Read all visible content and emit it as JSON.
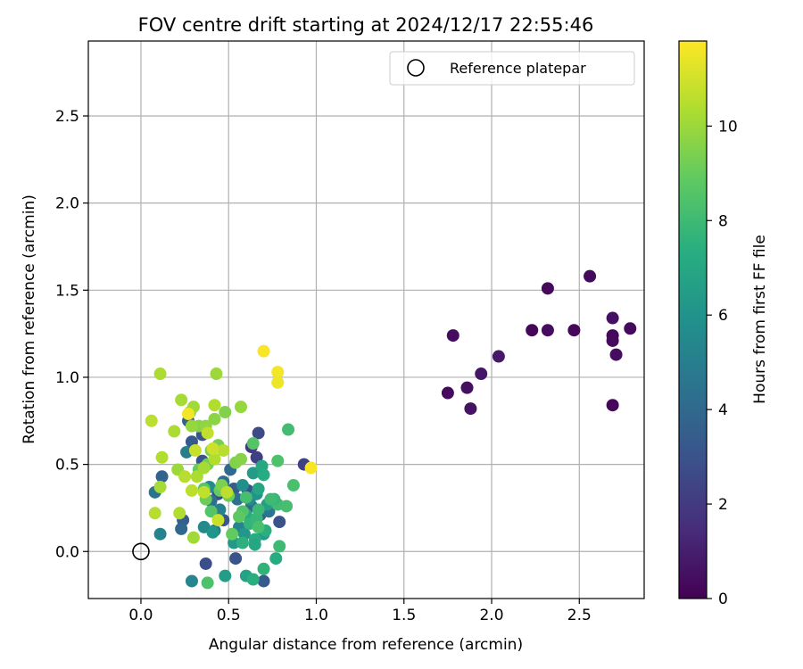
{
  "chart_data": {
    "type": "scatter",
    "title": "FOV centre drift starting at 2024/12/17 22:55:46",
    "xlabel": "Angular distance from reference (arcmin)",
    "ylabel": "Rotation from reference (arcmin)",
    "xlim": [
      -0.3,
      2.87
    ],
    "ylim": [
      -0.27,
      2.93
    ],
    "xticks": [
      0.0,
      0.5,
      1.0,
      1.5,
      2.0,
      2.5
    ],
    "xtick_labels": [
      "0.0",
      "0.5",
      "1.0",
      "1.5",
      "2.0",
      "2.5"
    ],
    "yticks": [
      0.0,
      0.5,
      1.0,
      1.5,
      2.0,
      2.5
    ],
    "ytick_labels": [
      "0.0",
      "0.5",
      "1.0",
      "1.5",
      "2.0",
      "2.5"
    ],
    "grid": true,
    "colormap": "viridis",
    "colorbar": {
      "label": "Hours from first FF file",
      "range": [
        0,
        11.8
      ],
      "ticks": [
        0,
        2,
        4,
        6,
        8,
        10
      ],
      "tick_labels": [
        "0",
        "2",
        "4",
        "6",
        "8",
        "10"
      ]
    },
    "legend": {
      "position": "top-right",
      "entries": [
        "Reference platepar"
      ]
    },
    "reference_point": {
      "x": 0.0,
      "y": 0.0
    },
    "points": [
      {
        "x": 1.75,
        "y": 0.91,
        "c": 0.3
      },
      {
        "x": 1.78,
        "y": 1.24,
        "c": 0.4
      },
      {
        "x": 1.86,
        "y": 0.94,
        "c": 0.5
      },
      {
        "x": 1.88,
        "y": 0.82,
        "c": 0.6
      },
      {
        "x": 1.94,
        "y": 1.02,
        "c": 0.7
      },
      {
        "x": 2.04,
        "y": 1.12,
        "c": 0.8
      },
      {
        "x": 2.23,
        "y": 1.27,
        "c": 0.2
      },
      {
        "x": 2.32,
        "y": 1.51,
        "c": 0.3
      },
      {
        "x": 2.32,
        "y": 1.27,
        "c": 0.4
      },
      {
        "x": 2.47,
        "y": 1.27,
        "c": 0.2
      },
      {
        "x": 2.56,
        "y": 1.58,
        "c": 0.3
      },
      {
        "x": 2.69,
        "y": 1.34,
        "c": 0.5
      },
      {
        "x": 2.69,
        "y": 1.24,
        "c": 0.2
      },
      {
        "x": 2.69,
        "y": 1.21,
        "c": 0.3
      },
      {
        "x": 2.71,
        "y": 1.13,
        "c": 0.4
      },
      {
        "x": 2.69,
        "y": 0.84,
        "c": 0.2
      },
      {
        "x": 2.79,
        "y": 1.28,
        "c": 0.3
      },
      {
        "x": 0.63,
        "y": 0.6,
        "c": 2.0
      },
      {
        "x": 0.66,
        "y": 0.54,
        "c": 2.2
      },
      {
        "x": 0.67,
        "y": 0.68,
        "c": 2.6
      },
      {
        "x": 0.93,
        "y": 0.5,
        "c": 2.3
      },
      {
        "x": 0.37,
        "y": -0.07,
        "c": 2.8
      },
      {
        "x": 0.35,
        "y": 0.52,
        "c": 3.0
      },
      {
        "x": 0.29,
        "y": 0.63,
        "c": 3.3
      },
      {
        "x": 0.27,
        "y": 0.75,
        "c": 3.6
      },
      {
        "x": 0.35,
        "y": 0.67,
        "c": 3.1
      },
      {
        "x": 0.79,
        "y": 0.17,
        "c": 3.0
      },
      {
        "x": 0.44,
        "y": 0.33,
        "c": 2.7
      },
      {
        "x": 0.53,
        "y": 0.36,
        "c": 3.4
      },
      {
        "x": 0.61,
        "y": 0.35,
        "c": 2.9
      },
      {
        "x": 0.12,
        "y": 0.43,
        "c": 3.8
      },
      {
        "x": 0.24,
        "y": 0.18,
        "c": 3.5
      },
      {
        "x": 0.47,
        "y": 0.18,
        "c": 3.2
      },
      {
        "x": 0.54,
        "y": -0.04,
        "c": 3.0
      },
      {
        "x": 0.7,
        "y": -0.17,
        "c": 3.3
      },
      {
        "x": 0.23,
        "y": 0.13,
        "c": 3.9
      },
      {
        "x": 0.08,
        "y": 0.34,
        "c": 4.5
      },
      {
        "x": 0.47,
        "y": 0.4,
        "c": 4.2
      },
      {
        "x": 0.55,
        "y": 0.3,
        "c": 4.4
      },
      {
        "x": 0.63,
        "y": 0.26,
        "c": 4.1
      },
      {
        "x": 0.68,
        "y": 0.21,
        "c": 3.8
      },
      {
        "x": 0.73,
        "y": 0.23,
        "c": 4.6
      },
      {
        "x": 0.51,
        "y": 0.47,
        "c": 4.0
      },
      {
        "x": 0.4,
        "y": 0.29,
        "c": 4.3
      },
      {
        "x": 0.42,
        "y": 0.12,
        "c": 4.8
      },
      {
        "x": 0.11,
        "y": 0.1,
        "c": 5.2
      },
      {
        "x": 0.29,
        "y": -0.17,
        "c": 5.4
      },
      {
        "x": 0.26,
        "y": 0.57,
        "c": 5.0
      },
      {
        "x": 0.36,
        "y": 0.14,
        "c": 5.5
      },
      {
        "x": 0.39,
        "y": 0.37,
        "c": 5.6
      },
      {
        "x": 0.45,
        "y": 0.24,
        "c": 5.1
      },
      {
        "x": 0.56,
        "y": 0.14,
        "c": 5.3
      },
      {
        "x": 0.58,
        "y": 0.38,
        "c": 5.8
      },
      {
        "x": 0.62,
        "y": 0.3,
        "c": 5.7
      },
      {
        "x": 0.66,
        "y": 0.33,
        "c": 6.0
      },
      {
        "x": 0.41,
        "y": 0.11,
        "c": 6.1
      },
      {
        "x": 0.53,
        "y": 0.05,
        "c": 6.3
      },
      {
        "x": 0.59,
        "y": 0.1,
        "c": 6.2
      },
      {
        "x": 0.7,
        "y": 0.1,
        "c": 6.4
      },
      {
        "x": 0.72,
        "y": 0.27,
        "c": 6.6
      },
      {
        "x": 0.48,
        "y": -0.14,
        "c": 6.5
      },
      {
        "x": 0.6,
        "y": -0.14,
        "c": 6.7
      },
      {
        "x": 0.64,
        "y": 0.45,
        "c": 6.4
      },
      {
        "x": 0.67,
        "y": 0.36,
        "c": 6.9
      },
      {
        "x": 0.69,
        "y": 0.49,
        "c": 7.0
      },
      {
        "x": 0.7,
        "y": 0.44,
        "c": 7.2
      },
      {
        "x": 0.6,
        "y": 0.21,
        "c": 7.1
      },
      {
        "x": 0.65,
        "y": 0.07,
        "c": 7.3
      },
      {
        "x": 0.65,
        "y": 0.04,
        "c": 7.0
      },
      {
        "x": 0.71,
        "y": 0.12,
        "c": 7.4
      },
      {
        "x": 0.77,
        "y": -0.04,
        "c": 7.2
      },
      {
        "x": 0.7,
        "y": -0.1,
        "c": 7.6
      },
      {
        "x": 0.64,
        "y": -0.16,
        "c": 7.4
      },
      {
        "x": 0.58,
        "y": 0.05,
        "c": 7.5
      },
      {
        "x": 0.62,
        "y": 0.16,
        "c": 7.7
      },
      {
        "x": 0.66,
        "y": 0.19,
        "c": 7.8
      },
      {
        "x": 0.67,
        "y": 0.24,
        "c": 7.9
      },
      {
        "x": 0.79,
        "y": 0.03,
        "c": 8.0
      },
      {
        "x": 0.78,
        "y": 0.27,
        "c": 8.1
      },
      {
        "x": 0.83,
        "y": 0.26,
        "c": 8.2
      },
      {
        "x": 0.76,
        "y": 0.3,
        "c": 7.8
      },
      {
        "x": 0.74,
        "y": 0.3,
        "c": 8.0
      },
      {
        "x": 0.87,
        "y": 0.38,
        "c": 8.3
      },
      {
        "x": 0.84,
        "y": 0.7,
        "c": 8.1
      },
      {
        "x": 0.78,
        "y": 0.52,
        "c": 8.4
      },
      {
        "x": 0.64,
        "y": 0.62,
        "c": 8.6
      },
      {
        "x": 0.6,
        "y": 0.31,
        "c": 8.2
      },
      {
        "x": 0.58,
        "y": 0.23,
        "c": 8.5
      },
      {
        "x": 0.67,
        "y": 0.14,
        "c": 8.3
      },
      {
        "x": 0.38,
        "y": -0.18,
        "c": 8.4
      },
      {
        "x": 0.36,
        "y": 0.36,
        "c": 8.7
      },
      {
        "x": 0.56,
        "y": 0.2,
        "c": 8.8
      },
      {
        "x": 0.52,
        "y": 0.1,
        "c": 8.9
      },
      {
        "x": 0.45,
        "y": 0.35,
        "c": 9.0
      },
      {
        "x": 0.4,
        "y": 0.23,
        "c": 8.6
      },
      {
        "x": 0.37,
        "y": 0.3,
        "c": 9.1
      },
      {
        "x": 0.33,
        "y": 0.47,
        "c": 9.0
      },
      {
        "x": 0.38,
        "y": 0.5,
        "c": 9.2
      },
      {
        "x": 0.4,
        "y": 0.58,
        "c": 9.3
      },
      {
        "x": 0.46,
        "y": 0.38,
        "c": 9.4
      },
      {
        "x": 0.5,
        "y": 0.32,
        "c": 9.1
      },
      {
        "x": 0.54,
        "y": 0.51,
        "c": 9.5
      },
      {
        "x": 0.57,
        "y": 0.53,
        "c": 9.6
      },
      {
        "x": 0.44,
        "y": 0.61,
        "c": 9.3
      },
      {
        "x": 0.48,
        "y": 0.8,
        "c": 9.5
      },
      {
        "x": 0.28,
        "y": 0.8,
        "c": 9.7
      },
      {
        "x": 0.33,
        "y": 0.72,
        "c": 9.6
      },
      {
        "x": 0.37,
        "y": 0.72,
        "c": 9.8
      },
      {
        "x": 0.29,
        "y": 0.72,
        "c": 9.9
      },
      {
        "x": 0.42,
        "y": 0.76,
        "c": 9.7
      },
      {
        "x": 0.57,
        "y": 0.83,
        "c": 9.9
      },
      {
        "x": 0.43,
        "y": 1.02,
        "c": 10.0
      },
      {
        "x": 0.3,
        "y": 0.83,
        "c": 10.1
      },
      {
        "x": 0.23,
        "y": 0.87,
        "c": 10.2
      },
      {
        "x": 0.19,
        "y": 0.69,
        "c": 10.3
      },
      {
        "x": 0.21,
        "y": 0.47,
        "c": 10.0
      },
      {
        "x": 0.12,
        "y": 0.54,
        "c": 10.4
      },
      {
        "x": 0.11,
        "y": 0.37,
        "c": 10.2
      },
      {
        "x": 0.08,
        "y": 0.22,
        "c": 10.5
      },
      {
        "x": 0.06,
        "y": 0.75,
        "c": 10.6
      },
      {
        "x": 0.11,
        "y": 1.02,
        "c": 10.3
      },
      {
        "x": 0.22,
        "y": 0.22,
        "c": 10.4
      },
      {
        "x": 0.3,
        "y": 0.08,
        "c": 10.1
      },
      {
        "x": 0.25,
        "y": 0.43,
        "c": 10.5
      },
      {
        "x": 0.29,
        "y": 0.35,
        "c": 10.6
      },
      {
        "x": 0.32,
        "y": 0.43,
        "c": 10.3
      },
      {
        "x": 0.36,
        "y": 0.48,
        "c": 10.2
      },
      {
        "x": 0.36,
        "y": 0.34,
        "c": 10.7
      },
      {
        "x": 0.42,
        "y": 0.53,
        "c": 10.4
      },
      {
        "x": 0.44,
        "y": 0.18,
        "c": 10.8
      },
      {
        "x": 0.47,
        "y": 0.58,
        "c": 10.5
      },
      {
        "x": 0.49,
        "y": 0.34,
        "c": 10.6
      },
      {
        "x": 0.42,
        "y": 0.84,
        "c": 10.4
      },
      {
        "x": 0.41,
        "y": 0.59,
        "c": 10.9
      },
      {
        "x": 0.38,
        "y": 0.68,
        "c": 10.7
      },
      {
        "x": 0.31,
        "y": 0.58,
        "c": 10.8
      },
      {
        "x": 0.27,
        "y": 0.79,
        "c": 11.6
      },
      {
        "x": 0.7,
        "y": 1.15,
        "c": 11.7
      },
      {
        "x": 0.78,
        "y": 1.03,
        "c": 11.6
      },
      {
        "x": 0.78,
        "y": 0.97,
        "c": 11.5
      },
      {
        "x": 0.97,
        "y": 0.48,
        "c": 11.7
      }
    ]
  }
}
